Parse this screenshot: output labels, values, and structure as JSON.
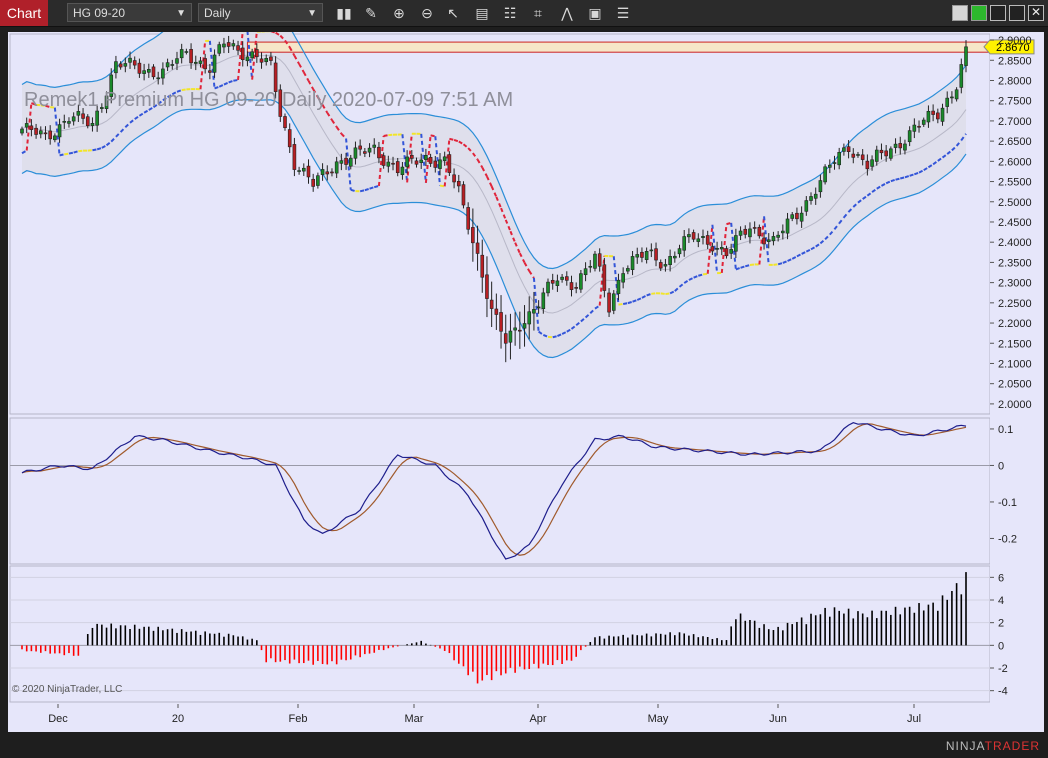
{
  "window": {
    "tab_label": "Chart",
    "instrument": "HG 09-20",
    "period": "Daily"
  },
  "toolbar_icons": [
    "bar-type-icon",
    "draw-icon",
    "zoom-in-icon",
    "zoom-out-icon",
    "pointer-icon",
    "data-box-icon",
    "properties-icon",
    "strategy-icon",
    "indicator-icon",
    "template-icon"
  ],
  "footer": {
    "brand_left": "NINJA",
    "brand_right": "TRADER",
    "copyright": "© 2020 NinjaTrader, LLC"
  },
  "chart_data": {
    "type": "candlestick",
    "title": "Remek1 Premium  HG 09-20  Daily  2020-07-09 7:51 AM",
    "current_price_label": "2.8670",
    "x_tick_labels": [
      "Dec",
      "20",
      "Feb",
      "Mar",
      "Apr",
      "May",
      "Jun",
      "Jul"
    ],
    "price_axis": {
      "ylim": [
        1.975,
        2.915
      ],
      "ticks": [
        "2.9000",
        "2.8500",
        "2.8000",
        "2.7500",
        "2.7000",
        "2.6500",
        "2.6000",
        "2.5500",
        "2.5000",
        "2.4500",
        "2.4000",
        "2.3500",
        "2.3000",
        "2.2500",
        "2.2000",
        "2.1500",
        "2.1000",
        "2.0500",
        "2.0000"
      ]
    },
    "oscillator_axis": {
      "ylim": [
        -0.27,
        0.13
      ],
      "ticks": [
        "0.1",
        "0",
        "-0.1",
        "-0.2"
      ]
    },
    "histogram_axis": {
      "ylim": [
        -5,
        7
      ],
      "ticks": [
        "6",
        "4",
        "2",
        "0",
        "-2",
        "-4"
      ]
    },
    "price_anchor_points": [
      [
        0,
        2.68
      ],
      [
        5,
        2.66
      ],
      [
        10,
        2.71
      ],
      [
        15,
        2.69
      ],
      [
        20,
        2.84
      ],
      [
        30,
        2.82
      ],
      [
        35,
        2.87
      ],
      [
        40,
        2.83
      ],
      [
        43,
        2.89
      ],
      [
        50,
        2.86
      ],
      [
        53,
        2.83
      ],
      [
        55,
        2.72
      ],
      [
        58,
        2.6
      ],
      [
        62,
        2.54
      ],
      [
        67,
        2.6
      ],
      [
        75,
        2.63
      ],
      [
        80,
        2.58
      ],
      [
        86,
        2.61
      ],
      [
        90,
        2.6
      ],
      [
        93,
        2.52
      ],
      [
        97,
        2.37
      ],
      [
        100,
        2.23
      ],
      [
        103,
        2.15
      ],
      [
        106,
        2.2
      ],
      [
        110,
        2.25
      ],
      [
        114,
        2.31
      ],
      [
        118,
        2.3
      ],
      [
        122,
        2.36
      ],
      [
        125,
        2.24
      ],
      [
        128,
        2.34
      ],
      [
        133,
        2.37
      ],
      [
        137,
        2.35
      ],
      [
        140,
        2.39
      ],
      [
        143,
        2.41
      ],
      [
        147,
        2.4
      ],
      [
        150,
        2.37
      ],
      [
        155,
        2.44
      ],
      [
        160,
        2.4
      ],
      [
        165,
        2.47
      ],
      [
        170,
        2.55
      ],
      [
        173,
        2.6
      ],
      [
        176,
        2.64
      ],
      [
        180,
        2.59
      ],
      [
        185,
        2.63
      ],
      [
        190,
        2.68
      ],
      [
        195,
        2.72
      ],
      [
        199,
        2.79
      ],
      [
        201,
        2.867
      ]
    ],
    "oscillator_anchor_points": [
      [
        0,
        -0.02
      ],
      [
        8,
        0.0
      ],
      [
        15,
        -0.01
      ],
      [
        24,
        0.08
      ],
      [
        30,
        0.07
      ],
      [
        40,
        0.04
      ],
      [
        48,
        0.02
      ],
      [
        54,
        0.0
      ],
      [
        60,
        -0.15
      ],
      [
        64,
        -0.19
      ],
      [
        72,
        -0.12
      ],
      [
        80,
        0.03
      ],
      [
        88,
        0.0
      ],
      [
        95,
        -0.08
      ],
      [
        103,
        -0.26
      ],
      [
        108,
        -0.22
      ],
      [
        115,
        -0.05
      ],
      [
        122,
        0.07
      ],
      [
        128,
        0.08
      ],
      [
        135,
        0.05
      ],
      [
        145,
        0.04
      ],
      [
        155,
        0.03
      ],
      [
        170,
        0.04
      ],
      [
        177,
        0.12
      ],
      [
        183,
        0.1
      ],
      [
        190,
        0.08
      ],
      [
        201,
        0.11
      ]
    ],
    "histogram_anchor_points": [
      [
        0,
        -0.5
      ],
      [
        12,
        -1.0
      ],
      [
        15,
        2.0
      ],
      [
        25,
        1.8
      ],
      [
        45,
        1.0
      ],
      [
        50,
        0.5
      ],
      [
        52,
        -1.5
      ],
      [
        66,
        -1.8
      ],
      [
        78,
        -0.3
      ],
      [
        85,
        0.4
      ],
      [
        90,
        -0.5
      ],
      [
        97,
        -3.5
      ],
      [
        104,
        -2.5
      ],
      [
        117,
        -1.5
      ],
      [
        122,
        0.8
      ],
      [
        140,
        1.2
      ],
      [
        150,
        0.5
      ],
      [
        152,
        3.0
      ],
      [
        160,
        1.5
      ],
      [
        172,
        3.5
      ],
      [
        180,
        3.0
      ],
      [
        195,
        4.0
      ],
      [
        201,
        6.5
      ]
    ],
    "colors": {
      "up_candle": "#1a8a2a",
      "down_candle": "#b81f24",
      "band_line": "#2b8ed8",
      "band_fill": "#dedeea",
      "trail_up": "#3355d8",
      "trail_down": "#e0243a",
      "trail_flat": "#f2e52a",
      "osc_fast": "#1e1e8c",
      "osc_slow": "#a05a2c",
      "hist_positive": "#000000",
      "hist_negative": "#ff0000",
      "resistance_zone": "#f6e6c8",
      "price_tag": "#fff200"
    }
  }
}
